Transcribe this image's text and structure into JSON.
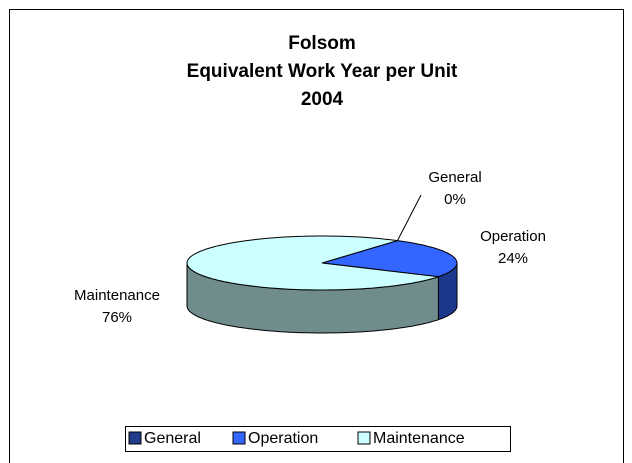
{
  "chart_data": {
    "type": "pie3d",
    "title": [
      "Folsom",
      "Equivalent Work Year per Unit",
      "2004"
    ],
    "categories": [
      "General",
      "Operation",
      "Maintenance"
    ],
    "values": [
      0,
      24,
      76
    ],
    "value_labels": [
      "0%",
      "24%",
      "76%"
    ],
    "colors": [
      "#203c8c",
      "#3366ff",
      "#ccffff"
    ],
    "legend": "bottom"
  }
}
